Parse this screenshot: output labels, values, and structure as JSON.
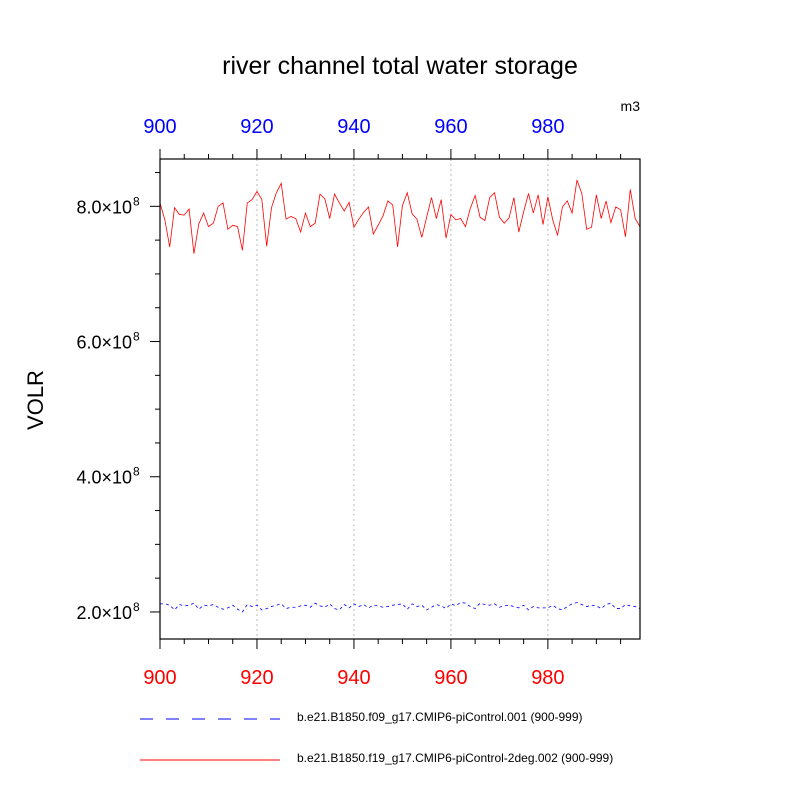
{
  "chart_data": {
    "type": "line",
    "title": "river channel total water storage",
    "units": "m3",
    "ylabel": "VOLR",
    "xlim": [
      900,
      999
    ],
    "ylim": [
      160000000,
      870000000
    ],
    "x_ticks_top": [
      "900",
      "920",
      "940",
      "960",
      "980"
    ],
    "x_ticks_bottom": [
      "900",
      "920",
      "940",
      "960",
      "980"
    ],
    "y_ticks": [
      {
        "value": 200000000,
        "mantissa": "2.0",
        "exponent": "8"
      },
      {
        "value": 400000000,
        "mantissa": "4.0",
        "exponent": "8"
      },
      {
        "value": 600000000,
        "mantissa": "6.0",
        "exponent": "8"
      },
      {
        "value": 800000000,
        "mantissa": "8.0",
        "exponent": "8"
      }
    ],
    "colors": {
      "top_ticks": "#0000ff",
      "bottom_ticks": "#ff0000",
      "grid": "#bbbbbb"
    },
    "grid": "vertical dotted",
    "series": [
      {
        "name": "b.e21.B1850.f09_g17.CMIP6-piControl.001 (900-999)",
        "color": "#0000ff",
        "dash": "dashed",
        "x_start": 900,
        "values": [
          212,
          212,
          210,
          203,
          211,
          209,
          210,
          213,
          204,
          210,
          209,
          211,
          207,
          204,
          206,
          210,
          204,
          200,
          211,
          208,
          210,
          203,
          205,
          208,
          210,
          212,
          205,
          207,
          207,
          209,
          210,
          207,
          213,
          209,
          207,
          212,
          205,
          203,
          211,
          206,
          212,
          208,
          211,
          206,
          210,
          209,
          207,
          208,
          210,
          211,
          212,
          204,
          212,
          208,
          210,
          203,
          207,
          211,
          209,
          205,
          212,
          209,
          214,
          213,
          208,
          205,
          213,
          211,
          210,
          212,
          207,
          209,
          210,
          208,
          206,
          210,
          203,
          208,
          206,
          206,
          206,
          210,
          205,
          203,
          208,
          212,
          214,
          211,
          208,
          210,
          209,
          205,
          211,
          213,
          205,
          205,
          211,
          209,
          208,
          205
        ]
      },
      {
        "name": "b.e21.B1850.f19_g17.CMIP6-piControl-2deg.002 (900-999)",
        "color": "#ff0000",
        "dash": "solid",
        "x_start": 900,
        "values": [
          805,
          780,
          740,
          798,
          788,
          787,
          796,
          730,
          774,
          790,
          770,
          775,
          800,
          805,
          766,
          772,
          770,
          735,
          805,
          810,
          822,
          810,
          741,
          798,
          820,
          834,
          781,
          785,
          782,
          762,
          790,
          770,
          775,
          818,
          811,
          782,
          818,
          805,
          793,
          806,
          769,
          781,
          791,
          799,
          759,
          772,
          786,
          808,
          802,
          740,
          801,
          820,
          789,
          781,
          754,
          784,
          813,
          782,
          810,
          753,
          788,
          780,
          782,
          770,
          797,
          816,
          784,
          779,
          813,
          820,
          784,
          775,
          783,
          813,
          762,
          792,
          819,
          790,
          817,
          773,
          814,
          780,
          757,
          799,
          808,
          790,
          839,
          819,
          766,
          769,
          817,
          782,
          808,
          776,
          799,
          795,
          755,
          825,
          782,
          770
        ]
      }
    ]
  },
  "legend": {
    "items": [
      {
        "label": "b.e21.B1850.f09_g17.CMIP6-piControl.001 (900-999)",
        "color": "#0000ff",
        "dash": "8,8"
      },
      {
        "label": "b.e21.B1850.f19_g17.CMIP6-piControl-2deg.002 (900-999)",
        "color": "#ff0000",
        "dash": ""
      }
    ]
  }
}
